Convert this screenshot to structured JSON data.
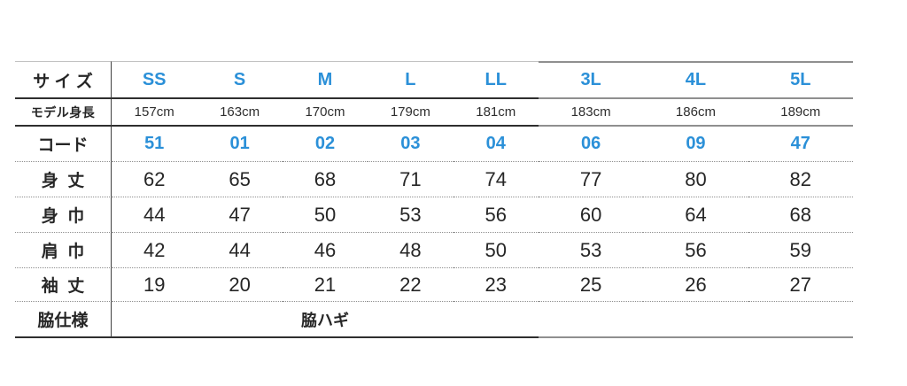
{
  "colors": {
    "accent_blue": "#2b90d8",
    "text_dark": "#262626",
    "line_dark": "#2e2e2e",
    "line_gray": "#8f8f8f",
    "line_light": "#c2c2c2"
  },
  "chart_data": {
    "type": "table",
    "corner_label": "サ イ ズ",
    "columns": [
      "SS",
      "S",
      "M",
      "L",
      "LL",
      "3L",
      "4L",
      "5L"
    ],
    "left_section_columns": [
      "SS",
      "S",
      "M",
      "L",
      "LL"
    ],
    "right_section_columns": [
      "3L",
      "4L",
      "5L"
    ],
    "rows": [
      {
        "label": "モデル身長",
        "style": "cm",
        "values": [
          "157cm",
          "163cm",
          "170cm",
          "179cm",
          "181cm",
          "183cm",
          "186cm",
          "189cm"
        ]
      },
      {
        "label": "コード",
        "style": "code",
        "values": [
          "51",
          "01",
          "02",
          "03",
          "04",
          "06",
          "09",
          "47"
        ]
      },
      {
        "label": "身  丈",
        "style": "num",
        "values": [
          "62",
          "65",
          "68",
          "71",
          "74",
          "77",
          "80",
          "82"
        ]
      },
      {
        "label": "身  巾",
        "style": "num",
        "values": [
          "44",
          "47",
          "50",
          "53",
          "56",
          "60",
          "64",
          "68"
        ]
      },
      {
        "label": "肩  巾",
        "style": "num",
        "values": [
          "42",
          "44",
          "46",
          "48",
          "50",
          "53",
          "56",
          "59"
        ]
      },
      {
        "label": "袖  丈",
        "style": "num",
        "values": [
          "19",
          "20",
          "21",
          "22",
          "23",
          "25",
          "26",
          "27"
        ]
      },
      {
        "label": "脇仕様",
        "style": "span",
        "span_value": "脇ハギ",
        "span_columns": "SS-LL"
      }
    ]
  }
}
